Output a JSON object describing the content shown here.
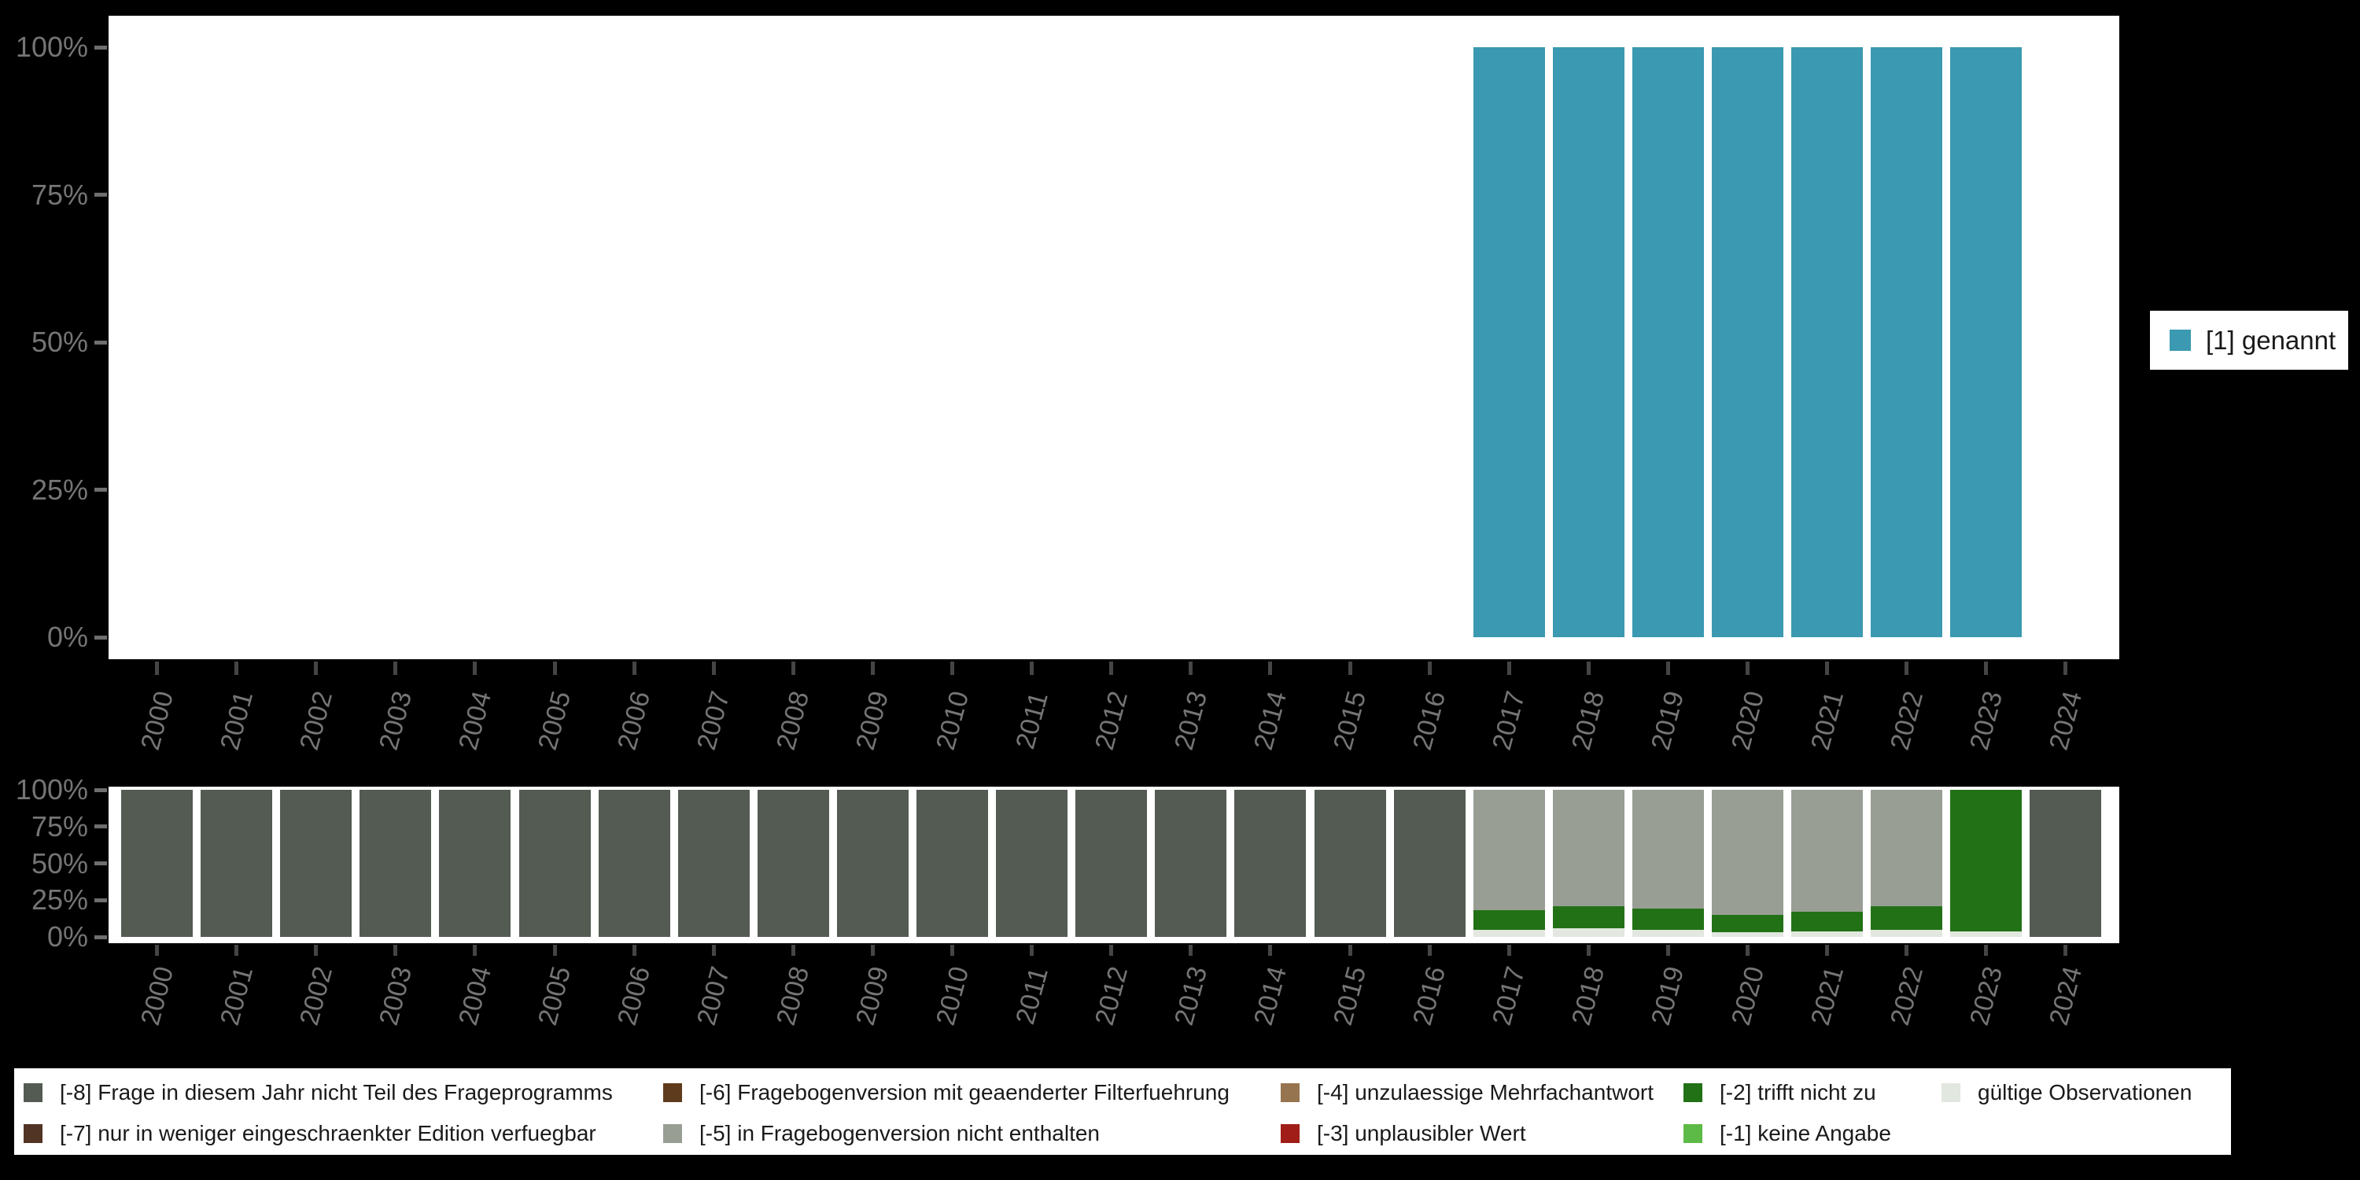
{
  "figure": {
    "background": "#000000",
    "panel_background": "#ffffff",
    "axis_text_color": "#757575"
  },
  "years": [
    "2000",
    "2001",
    "2002",
    "2003",
    "2004",
    "2005",
    "2006",
    "2007",
    "2008",
    "2009",
    "2010",
    "2011",
    "2012",
    "2013",
    "2014",
    "2015",
    "2016",
    "2017",
    "2018",
    "2019",
    "2020",
    "2021",
    "2022",
    "2023",
    "2024"
  ],
  "top_chart": {
    "y_tick_labels": [
      "100%",
      "75%",
      "50%",
      "25%",
      "0%"
    ]
  },
  "bottom_chart": {
    "y_tick_labels": [
      "100%",
      "75%",
      "50%",
      "25%",
      "0%"
    ]
  },
  "chart_data": [
    {
      "type": "bar",
      "title": "",
      "xlabel": "",
      "ylabel": "",
      "ylim": [
        0,
        100
      ],
      "grid": false,
      "legend_position": "right-center",
      "categories": [
        "2000",
        "2001",
        "2002",
        "2003",
        "2004",
        "2005",
        "2006",
        "2007",
        "2008",
        "2009",
        "2010",
        "2011",
        "2012",
        "2013",
        "2014",
        "2015",
        "2016",
        "2017",
        "2018",
        "2019",
        "2020",
        "2021",
        "2022",
        "2023",
        "2024"
      ],
      "series": [
        {
          "name": "[1] genannt",
          "color": "#3b99b1",
          "values": [
            null,
            null,
            null,
            null,
            null,
            null,
            null,
            null,
            null,
            null,
            null,
            null,
            null,
            null,
            null,
            null,
            null,
            100,
            100,
            100,
            100,
            100,
            100,
            100,
            null
          ]
        }
      ]
    },
    {
      "type": "stacked-bar",
      "title": "",
      "xlabel": "",
      "ylabel": "",
      "ylim": [
        0,
        100
      ],
      "grid": false,
      "legend_position": "bottom",
      "categories": [
        "2000",
        "2001",
        "2002",
        "2003",
        "2004",
        "2005",
        "2006",
        "2007",
        "2008",
        "2009",
        "2010",
        "2011",
        "2012",
        "2013",
        "2014",
        "2015",
        "2016",
        "2017",
        "2018",
        "2019",
        "2020",
        "2021",
        "2022",
        "2023",
        "2024"
      ],
      "series": [
        {
          "name": "[-8] Frage in diesem Jahr nicht Teil des Frageprogramms",
          "color": "#535b53",
          "values": [
            100,
            100,
            100,
            100,
            100,
            100,
            100,
            100,
            100,
            100,
            100,
            100,
            100,
            100,
            100,
            100,
            100,
            0,
            0,
            0,
            0,
            0,
            0,
            0,
            100
          ]
        },
        {
          "name": "[-7] nur in weniger eingeschraenkter Edition verfuegbar",
          "color": "#523424",
          "values": [
            0,
            0,
            0,
            0,
            0,
            0,
            0,
            0,
            0,
            0,
            0,
            0,
            0,
            0,
            0,
            0,
            0,
            0,
            0,
            0,
            0,
            0,
            0,
            0,
            0
          ]
        },
        {
          "name": "[-6] Fragebogenversion mit geaenderter Filterfuehrung",
          "color": "#5f3b1d",
          "values": [
            0,
            0,
            0,
            0,
            0,
            0,
            0,
            0,
            0,
            0,
            0,
            0,
            0,
            0,
            0,
            0,
            0,
            0,
            0,
            0,
            0,
            0,
            0,
            0,
            0
          ]
        },
        {
          "name": "[-5] in Fragebogenversion nicht enthalten",
          "color": "#999e95",
          "values": [
            0,
            0,
            0,
            0,
            0,
            0,
            0,
            0,
            0,
            0,
            0,
            0,
            0,
            0,
            0,
            0,
            0,
            82,
            79,
            81,
            85,
            83,
            79,
            0,
            0
          ]
        },
        {
          "name": "[-4] unzulaessige Mehrfachantwort",
          "color": "#96744f",
          "values": [
            0,
            0,
            0,
            0,
            0,
            0,
            0,
            0,
            0,
            0,
            0,
            0,
            0,
            0,
            0,
            0,
            0,
            0,
            0,
            0,
            0,
            0,
            0,
            0,
            0
          ]
        },
        {
          "name": "[-3] unplausibler Wert",
          "color": "#a11d17",
          "values": [
            0,
            0,
            0,
            0,
            0,
            0,
            0,
            0,
            0,
            0,
            0,
            0,
            0,
            0,
            0,
            0,
            0,
            0,
            0,
            0,
            0,
            0,
            0,
            0,
            0
          ]
        },
        {
          "name": "[-2] trifft nicht zu",
          "color": "#227116",
          "values": [
            0,
            0,
            0,
            0,
            0,
            0,
            0,
            0,
            0,
            0,
            0,
            0,
            0,
            0,
            0,
            0,
            0,
            13,
            15,
            14,
            12,
            13,
            16,
            96,
            0
          ]
        },
        {
          "name": "[-1] keine Angabe",
          "color": "#5eba46",
          "values": [
            0,
            0,
            0,
            0,
            0,
            0,
            0,
            0,
            0,
            0,
            0,
            0,
            0,
            0,
            0,
            0,
            0,
            0,
            0,
            0,
            0,
            0,
            0,
            0,
            0
          ]
        },
        {
          "name": "gültige Observationen",
          "color": "#e2e7df",
          "values": [
            0,
            0,
            0,
            0,
            0,
            0,
            0,
            0,
            0,
            0,
            0,
            0,
            0,
            0,
            0,
            0,
            0,
            5,
            6,
            5,
            3,
            4,
            5,
            4,
            0
          ]
        }
      ],
      "stack_order_bottom_to_top": [
        "gültige Observationen",
        "[-1] keine Angabe",
        "[-2] trifft nicht zu",
        "[-3] unplausibler Wert",
        "[-4] unzulaessige Mehrfachantwort",
        "[-5] in Fragebogenversion nicht enthalten",
        "[-6] Fragebogenversion mit geaenderter Filterfuehrung",
        "[-7] nur in weniger eingeschraenkter Edition verfuegbar",
        "[-8] Frage in diesem Jahr nicht Teil des Frageprogramms"
      ]
    }
  ]
}
